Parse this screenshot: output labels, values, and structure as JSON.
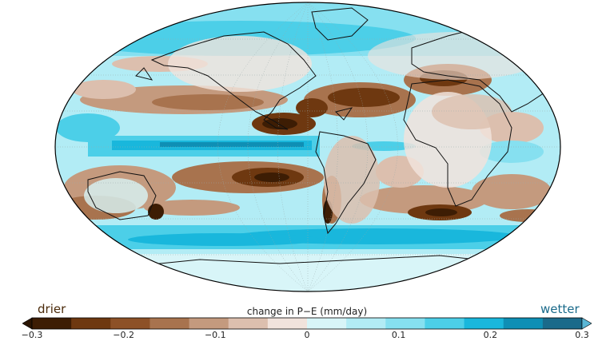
{
  "colorbar": {
    "title": "change in P−E (mm/day)",
    "left_label": "drier",
    "right_label": "wetter",
    "tick_labels": [
      "−0.3",
      "−0.2",
      "−0.1",
      "0",
      "0.1",
      "0.2",
      "0.3"
    ],
    "colors": [
      "#3d1d04",
      "#6e3810",
      "#8d5127",
      "#a8734e",
      "#c49a7e",
      "#dcbfae",
      "#f1e3dc",
      "#d8f5f8",
      "#b2ecf5",
      "#86e0f0",
      "#4ccfe8",
      "#19b7dc",
      "#0e8fb5",
      "#1a6a8a"
    ],
    "min_arrow_color": "#2a1402",
    "max_arrow_color": "#5ab7d6"
  },
  "map": {
    "projection": "robinson",
    "ocean_background": "#b2ecf5",
    "grid": true
  }
}
